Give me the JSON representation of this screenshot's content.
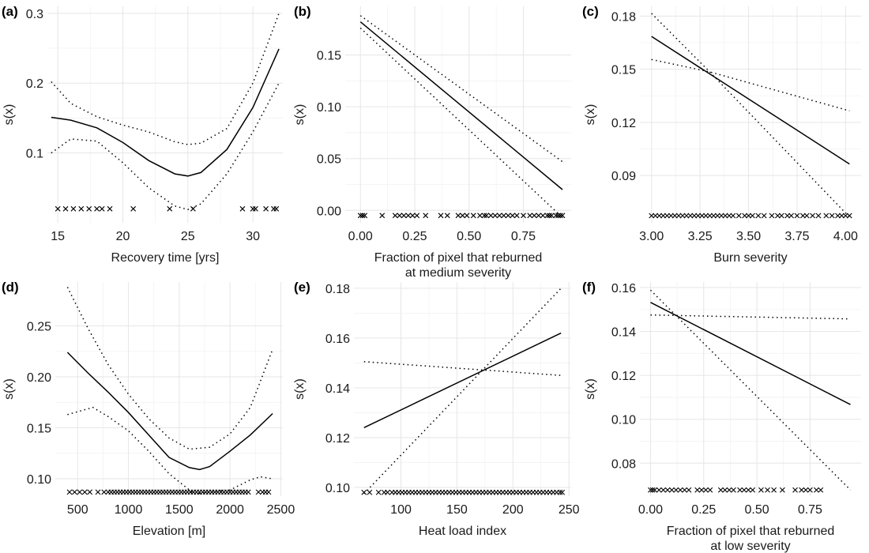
{
  "chart_data": [
    {
      "panel": "(a)",
      "type": "line",
      "xlabel": [
        "Recovery time [yrs]"
      ],
      "ylabel": "s(x)",
      "xlim": [
        14.2,
        32.3
      ],
      "ylim": [
        0.0,
        0.31
      ],
      "xticks": [
        15,
        20,
        25,
        30
      ],
      "xtick_labels": [
        "15",
        "20",
        "25",
        "30"
      ],
      "yticks": [
        0.1,
        0.2,
        0.3
      ],
      "ytick_labels": [
        "0.1",
        "0.2",
        "0.3"
      ],
      "rug_y": 0.02,
      "series": [
        {
          "role": "fit",
          "x": [
            14.5,
            16,
            18,
            20,
            22,
            24,
            25,
            26,
            28,
            30,
            32
          ],
          "y": [
            0.151,
            0.147,
            0.136,
            0.115,
            0.089,
            0.07,
            0.067,
            0.072,
            0.105,
            0.165,
            0.249
          ]
        },
        {
          "role": "upper",
          "x": [
            14.5,
            16,
            18,
            20,
            22,
            24,
            25,
            26,
            28,
            30,
            32
          ],
          "y": [
            0.202,
            0.171,
            0.152,
            0.14,
            0.13,
            0.116,
            0.112,
            0.114,
            0.135,
            0.2,
            0.3
          ]
        },
        {
          "role": "lower",
          "x": [
            14.5,
            16,
            18,
            20,
            22,
            24,
            25,
            26,
            28,
            30,
            32
          ],
          "y": [
            0.1,
            0.12,
            0.117,
            0.086,
            0.05,
            0.024,
            0.019,
            0.027,
            0.07,
            0.13,
            0.2
          ]
        }
      ],
      "rug": [
        15,
        15.6,
        16.2,
        16.8,
        17.4,
        18,
        18.4,
        19,
        20.8,
        23.6,
        25.4,
        29.2,
        30,
        30.2,
        31,
        31.6,
        31.8
      ]
    },
    {
      "panel": "(b)",
      "type": "line",
      "xlabel": [
        "Fraction of pixel that reburned",
        "at medium severity"
      ],
      "ylabel": "s(x)",
      "xlim": [
        -0.07,
        0.97
      ],
      "ylim": [
        -0.012,
        0.197
      ],
      "xticks": [
        0,
        0.25,
        0.5,
        0.75
      ],
      "xtick_labels": [
        "0.00",
        "0.25",
        "0.50",
        "0.75"
      ],
      "yticks": [
        0,
        0.05,
        0.1,
        0.15
      ],
      "ytick_labels": [
        "0.00",
        "0.05",
        "0.10",
        "0.15"
      ],
      "rug_y": -0.005,
      "series": [
        {
          "role": "fit",
          "x": [
            0,
            0.93
          ],
          "y": [
            0.182,
            0.02
          ]
        },
        {
          "role": "upper",
          "x": [
            0,
            0.93
          ],
          "y": [
            0.188,
            0.047
          ]
        },
        {
          "role": "lower",
          "x": [
            0,
            0.93
          ],
          "y": [
            0.176,
            -0.007
          ]
        }
      ],
      "rug": [
        0,
        0.01,
        0.02,
        0.1,
        0.16,
        0.18,
        0.2,
        0.22,
        0.24,
        0.26,
        0.3,
        0.37,
        0.4,
        0.45,
        0.47,
        0.49,
        0.52,
        0.55,
        0.57,
        0.58,
        0.6,
        0.62,
        0.64,
        0.66,
        0.68,
        0.7,
        0.72,
        0.75,
        0.78,
        0.8,
        0.82,
        0.84,
        0.86,
        0.87,
        0.88,
        0.9,
        0.91,
        0.92,
        0.93
      ]
    },
    {
      "panel": "(c)",
      "type": "line",
      "xlabel": [
        "Burn severity"
      ],
      "ylabel": "s(x)",
      "xlim": [
        2.94,
        4.08
      ],
      "ylim": [
        0.0633,
        0.1855
      ],
      "xticks": [
        3.0,
        3.25,
        3.5,
        3.75,
        4.0
      ],
      "xtick_labels": [
        "3.00",
        "3.25",
        "3.50",
        "3.75",
        "4.00"
      ],
      "yticks": [
        0.09,
        0.12,
        0.15,
        0.18
      ],
      "ytick_labels": [
        "0.09",
        "0.12",
        "0.15",
        "0.18"
      ],
      "rug_y": 0.0673,
      "series": [
        {
          "role": "fit",
          "x": [
            3.0,
            4.02
          ],
          "y": [
            0.1685,
            0.0965
          ]
        },
        {
          "role": "upper",
          "x": [
            3.0,
            3.3,
            4.02
          ],
          "y": [
            0.1555,
            0.1485,
            0.1265
          ]
        },
        {
          "role": "lower",
          "x": [
            3.0,
            3.3,
            4.02
          ],
          "y": [
            0.1815,
            0.1485,
            0.0665
          ]
        }
      ],
      "rug": [
        3.0,
        3.02,
        3.04,
        3.06,
        3.08,
        3.1,
        3.12,
        3.14,
        3.16,
        3.18,
        3.2,
        3.22,
        3.24,
        3.26,
        3.28,
        3.3,
        3.32,
        3.34,
        3.36,
        3.38,
        3.4,
        3.42,
        3.45,
        3.48,
        3.5,
        3.52,
        3.55,
        3.58,
        3.62,
        3.65,
        3.67,
        3.7,
        3.72,
        3.75,
        3.78,
        3.8,
        3.83,
        3.86,
        3.9,
        3.93,
        3.96,
        3.98,
        4.0,
        4.02
      ]
    },
    {
      "panel": "(d)",
      "type": "line",
      "xlabel": [
        "Elevation [m]"
      ],
      "ylabel": "s(x)",
      "xlim": [
        280,
        2520
      ],
      "ylim": [
        0.083,
        0.293
      ],
      "xticks": [
        500,
        1000,
        1500,
        2000,
        2500
      ],
      "xtick_labels": [
        "500",
        "1000",
        "1500",
        "2000",
        "2500"
      ],
      "yticks": [
        0.1,
        0.15,
        0.2,
        0.25
      ],
      "ytick_labels": [
        "0.10",
        "0.15",
        "0.20",
        "0.25"
      ],
      "rug_y": 0.087,
      "series": [
        {
          "role": "fit",
          "x": [
            400,
            600,
            800,
            1000,
            1200,
            1400,
            1600,
            1700,
            1800,
            2000,
            2200,
            2420
          ],
          "y": [
            0.224,
            0.204,
            0.185,
            0.165,
            0.143,
            0.121,
            0.111,
            0.109,
            0.112,
            0.127,
            0.143,
            0.164
          ]
        },
        {
          "role": "upper",
          "x": [
            400,
            600,
            800,
            1000,
            1200,
            1400,
            1600,
            1800,
            2000,
            2200,
            2420
          ],
          "y": [
            0.288,
            0.248,
            0.212,
            0.183,
            0.159,
            0.14,
            0.129,
            0.131,
            0.144,
            0.17,
            0.227
          ]
        },
        {
          "role": "lower",
          "x": [
            400,
            650,
            800,
            1000,
            1200,
            1400,
            1650,
            1800,
            2000,
            2200,
            2300,
            2420
          ],
          "y": [
            0.163,
            0.17,
            0.161,
            0.147,
            0.127,
            0.105,
            0.085,
            0.087,
            0.089,
            0.099,
            0.102,
            0.1
          ]
        }
      ],
      "rug": [
        420,
        470,
        520,
        570,
        620,
        700,
        760,
        800,
        830,
        860,
        890,
        920,
        950,
        980,
        1010,
        1040,
        1070,
        1100,
        1130,
        1160,
        1190,
        1220,
        1250,
        1280,
        1310,
        1340,
        1370,
        1400,
        1430,
        1460,
        1490,
        1520,
        1550,
        1580,
        1610,
        1640,
        1670,
        1700,
        1730,
        1760,
        1790,
        1820,
        1850,
        1880,
        1910,
        1940,
        1970,
        2000,
        2030,
        2060,
        2090,
        2120,
        2150,
        2180,
        2280,
        2320,
        2350,
        2380
      ]
    },
    {
      "panel": "(e)",
      "type": "line",
      "xlabel": [
        "Heat load index"
      ],
      "ylabel": "s(x)",
      "xlim": [
        58,
        252
      ],
      "ylim": [
        0.0965,
        0.1825
      ],
      "xticks": [
        100,
        150,
        200,
        250
      ],
      "xtick_labels": [
        "100",
        "150",
        "200",
        "250"
      ],
      "yticks": [
        0.1,
        0.12,
        0.14,
        0.16,
        0.18
      ],
      "ytick_labels": [
        "0.10",
        "0.12",
        "0.14",
        "0.16",
        "0.18"
      ],
      "rug_y": 0.098,
      "series": [
        {
          "role": "fit",
          "x": [
            67,
            243
          ],
          "y": [
            0.124,
            0.162
          ]
        },
        {
          "role": "upper",
          "x": [
            67,
            243
          ],
          "y": [
            0.1505,
            0.145
          ]
        },
        {
          "role": "lower",
          "x": [
            67,
            243
          ],
          "y": [
            0.0975,
            0.18
          ]
        }
      ],
      "rug": [
        67,
        72,
        80,
        85,
        88,
        92,
        95,
        98,
        101,
        104,
        107,
        110,
        113,
        116,
        119,
        122,
        125,
        128,
        131,
        134,
        137,
        140,
        143,
        146,
        149,
        152,
        155,
        158,
        161,
        164,
        167,
        170,
        173,
        176,
        179,
        182,
        185,
        188,
        191,
        194,
        197,
        200,
        203,
        206,
        209,
        212,
        215,
        218,
        221,
        224,
        227,
        230,
        233,
        236,
        239,
        242,
        244
      ]
    },
    {
      "panel": "(f)",
      "type": "line",
      "xlabel": [
        "Fraction of pixel that reburned",
        "at low severity"
      ],
      "ylabel": "s(x)",
      "xlim": [
        -0.05,
        0.99
      ],
      "ylim": [
        0.065,
        0.1625
      ],
      "xticks": [
        0,
        0.25,
        0.5,
        0.75
      ],
      "xtick_labels": [
        "0.00",
        "0.25",
        "0.50",
        "0.75"
      ],
      "yticks": [
        0.08,
        0.1,
        0.12,
        0.14,
        0.16
      ],
      "ytick_labels": [
        "0.08",
        "0.10",
        "0.12",
        "0.14",
        "0.16"
      ],
      "rug_y": 0.0678,
      "series": [
        {
          "role": "fit",
          "x": [
            0,
            0.94
          ],
          "y": [
            0.1532,
            0.1067
          ]
        },
        {
          "role": "upper",
          "x": [
            0,
            0.94
          ],
          "y": [
            0.1475,
            0.1457
          ]
        },
        {
          "role": "lower",
          "x": [
            0,
            0.94
          ],
          "y": [
            0.1588,
            0.0678
          ]
        }
      ],
      "rug": [
        0,
        0.01,
        0.02,
        0.04,
        0.06,
        0.08,
        0.1,
        0.12,
        0.14,
        0.16,
        0.18,
        0.22,
        0.24,
        0.26,
        0.28,
        0.33,
        0.35,
        0.37,
        0.39,
        0.42,
        0.44,
        0.46,
        0.48,
        0.52,
        0.55,
        0.58,
        0.62,
        0.68,
        0.71,
        0.73,
        0.75,
        0.78,
        0.8
      ]
    }
  ]
}
